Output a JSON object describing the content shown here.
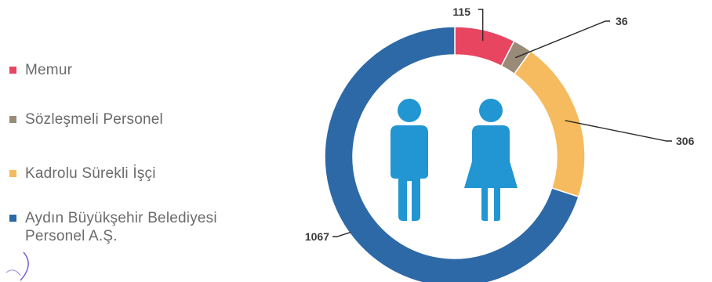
{
  "chart_data": {
    "type": "pie",
    "variant": "donut",
    "title": "",
    "categories": [
      "Memur",
      "Sözleşmeli Personel",
      "Kadrolu Sürekli İşçi",
      "Aydın Büyükşehir Belediyesi Personel A.Ş."
    ],
    "values": [
      115,
      36,
      306,
      1067
    ],
    "colors": [
      "#e84560",
      "#9a8b78",
      "#f6bb5e",
      "#2d69a6"
    ],
    "legend_position": "left",
    "center_icon": "man-woman-icon",
    "center_icon_color": "#2196d3"
  }
}
